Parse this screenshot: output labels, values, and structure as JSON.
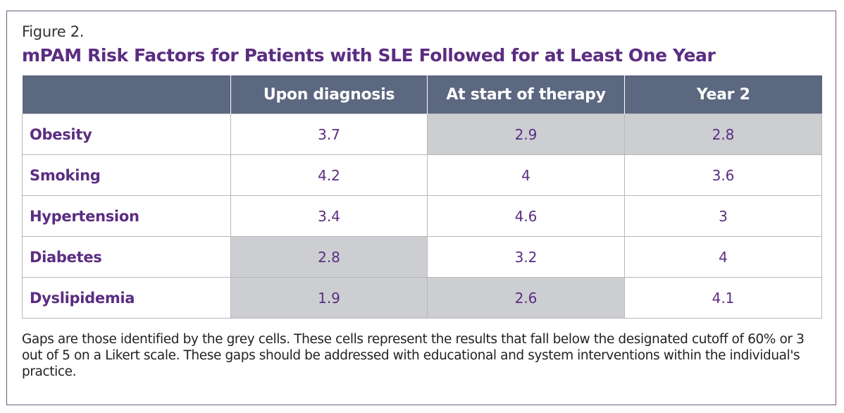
{
  "figure": {
    "label": "Figure 2.",
    "title": "mPAM Risk Factors for Patients with SLE Followed for at Least One Year"
  },
  "table": {
    "columns": [
      "",
      "Upon diagnosis",
      "At start of therapy",
      "Year 2"
    ],
    "rows": [
      {
        "label": "Obesity",
        "values": [
          "3.7",
          "2.9",
          "2.8"
        ],
        "gaps": [
          false,
          true,
          true
        ]
      },
      {
        "label": "Smoking",
        "values": [
          "4.2",
          "4",
          "3.6"
        ],
        "gaps": [
          false,
          false,
          false
        ]
      },
      {
        "label": "Hypertension",
        "values": [
          "3.4",
          "4.6",
          "3"
        ],
        "gaps": [
          false,
          false,
          false
        ]
      },
      {
        "label": "Diabetes",
        "values": [
          "2.8",
          "3.2",
          "4"
        ],
        "gaps": [
          true,
          false,
          false
        ]
      },
      {
        "label": "Dyslipidemia",
        "values": [
          "1.9",
          "2.6",
          "4.1"
        ],
        "gaps": [
          true,
          true,
          false
        ]
      }
    ]
  },
  "note": "Gaps are those identified by the grey cells. These cells represent the results that fall below the designated cutoff of 60% or 3 out of 5 on a Likert scale. These gaps should be addressed with educational and system interventions within the individual's practice.",
  "colors": {
    "title": "#5b2d82",
    "header_bg": "#5c6780",
    "gap_cell": "#ccced2",
    "border": "#6b5a7e"
  }
}
